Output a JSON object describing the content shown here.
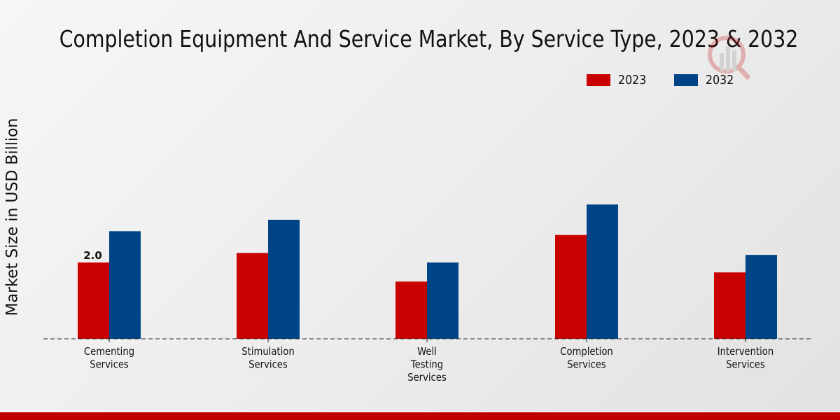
{
  "chart_data": {
    "type": "bar",
    "title": "Completion Equipment And Service Market, By Service Type, 2023 & 2032",
    "xlabel": "",
    "ylabel": "Market Size in USD Billion",
    "categories": [
      [
        "Cementing",
        "Services"
      ],
      [
        "Stimulation",
        "Services"
      ],
      [
        "Well",
        "Testing",
        "Services"
      ],
      [
        "Completion",
        "Services"
      ],
      [
        "Intervention",
        "Services"
      ]
    ],
    "series": [
      {
        "name": "2023",
        "color": "#c80000",
        "values": [
          2.0,
          2.25,
          1.5,
          2.72,
          1.74
        ]
      },
      {
        "name": "2032",
        "color": "#004488",
        "values": [
          2.82,
          3.12,
          2.0,
          3.52,
          2.2
        ]
      }
    ],
    "data_labels": [
      {
        "series": 0,
        "index": 0,
        "text": "2.0"
      }
    ],
    "ylim": [
      0,
      5.5
    ],
    "grid": false,
    "legend_position": "top-right"
  },
  "footer": {
    "bar_color": "#c00000"
  }
}
